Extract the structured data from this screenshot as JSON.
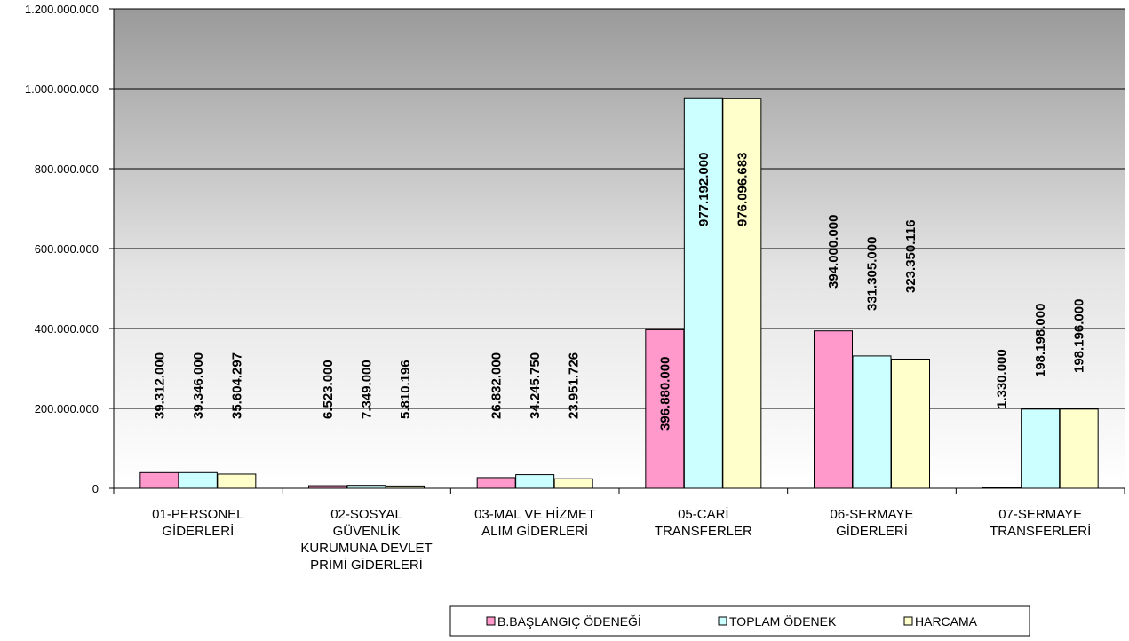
{
  "chart_data": {
    "type": "bar",
    "title": "",
    "xlabel": "",
    "ylabel": "",
    "ylim": [
      0,
      1200000000
    ],
    "y_ticks": [
      0,
      200000000,
      400000000,
      600000000,
      800000000,
      1000000000,
      1200000000
    ],
    "y_tick_labels": [
      "0",
      "200.000.000",
      "400.000.000",
      "600.000.000",
      "800.000.000",
      "1.000.000.000",
      "1.200.000.000"
    ],
    "grid": true,
    "legend_position": "bottom",
    "categories": [
      [
        "01-PERSONEL",
        "GİDERLERİ"
      ],
      [
        "02-SOSYAL",
        "GÜVENLİK",
        "KURUMUNA DEVLET",
        "PRİMİ GİDERLERİ"
      ],
      [
        "03-MAL VE HİZMET",
        "ALIM GİDERLERİ"
      ],
      [
        "05-CARİ",
        "TRANSFERLER"
      ],
      [
        "06-SERMAYE",
        "GİDERLERİ"
      ],
      [
        "07-SERMAYE",
        "TRANSFERLERİ"
      ]
    ],
    "series": [
      {
        "name": "B.BAŞLANGIÇ ÖDENEĞİ",
        "color": "#ff99cc",
        "values": [
          39312000,
          6523000,
          26832000,
          396880000,
          394000000,
          1330000
        ],
        "labels": [
          "39.312.000",
          "6.523.000",
          "26.832.000",
          "396.880.000",
          "394.000.000",
          "1.330.000"
        ]
      },
      {
        "name": "TOPLAM ÖDENEK",
        "color": "#ccffff",
        "values": [
          39346000,
          7349000,
          34245750,
          977192000,
          331305000,
          198198000
        ],
        "labels": [
          "39.346.000",
          "7.349.000",
          "34.245.750",
          "977.192.000",
          "331.305.000",
          "198.198.000"
        ]
      },
      {
        "name": "HARCAMA",
        "color": "#ffffcc",
        "values": [
          35604297,
          5810196,
          23951726,
          976096683,
          323350116,
          198196000
        ],
        "labels": [
          "35.604.297",
          "5.810.196",
          "23.951.726",
          "976.096.683",
          "323.350.116",
          "198.196.000"
        ]
      }
    ]
  }
}
